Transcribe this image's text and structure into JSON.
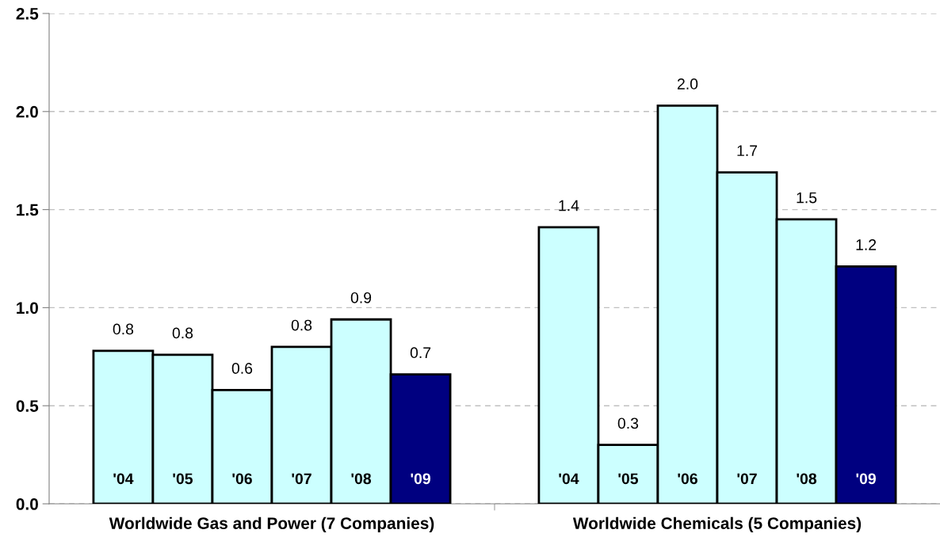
{
  "chart_data": {
    "type": "bar",
    "categories": [
      "Worldwide Gas and Power (7 Companies)",
      "Worldwide Chemicals (5 Companies)"
    ],
    "series": [
      {
        "name": "'04",
        "color": "#ccffff",
        "values": [
          0.78,
          1.41
        ],
        "value_labels": [
          "0.8",
          "1.4"
        ]
      },
      {
        "name": "'05",
        "color": "#ccffff",
        "values": [
          0.76,
          0.3
        ],
        "value_labels": [
          "0.8",
          "0.3"
        ]
      },
      {
        "name": "'06",
        "color": "#ccffff",
        "values": [
          0.58,
          2.03
        ],
        "value_labels": [
          "0.6",
          "2.0"
        ]
      },
      {
        "name": "'07",
        "color": "#ccffff",
        "values": [
          0.8,
          1.69
        ],
        "value_labels": [
          "0.8",
          "1.7"
        ]
      },
      {
        "name": "'08",
        "color": "#ccffff",
        "values": [
          0.94,
          1.45
        ],
        "value_labels": [
          "0.9",
          "1.5"
        ]
      },
      {
        "name": "'09",
        "color": "#000080",
        "values": [
          0.66,
          1.21
        ],
        "value_labels": [
          "0.7",
          "1.2"
        ]
      }
    ],
    "ylim": [
      0,
      2.5
    ],
    "yticks": [
      "0.0",
      "0.5",
      "1.0",
      "1.5",
      "2.0",
      "2.5"
    ],
    "grid": "y",
    "legend": false
  }
}
